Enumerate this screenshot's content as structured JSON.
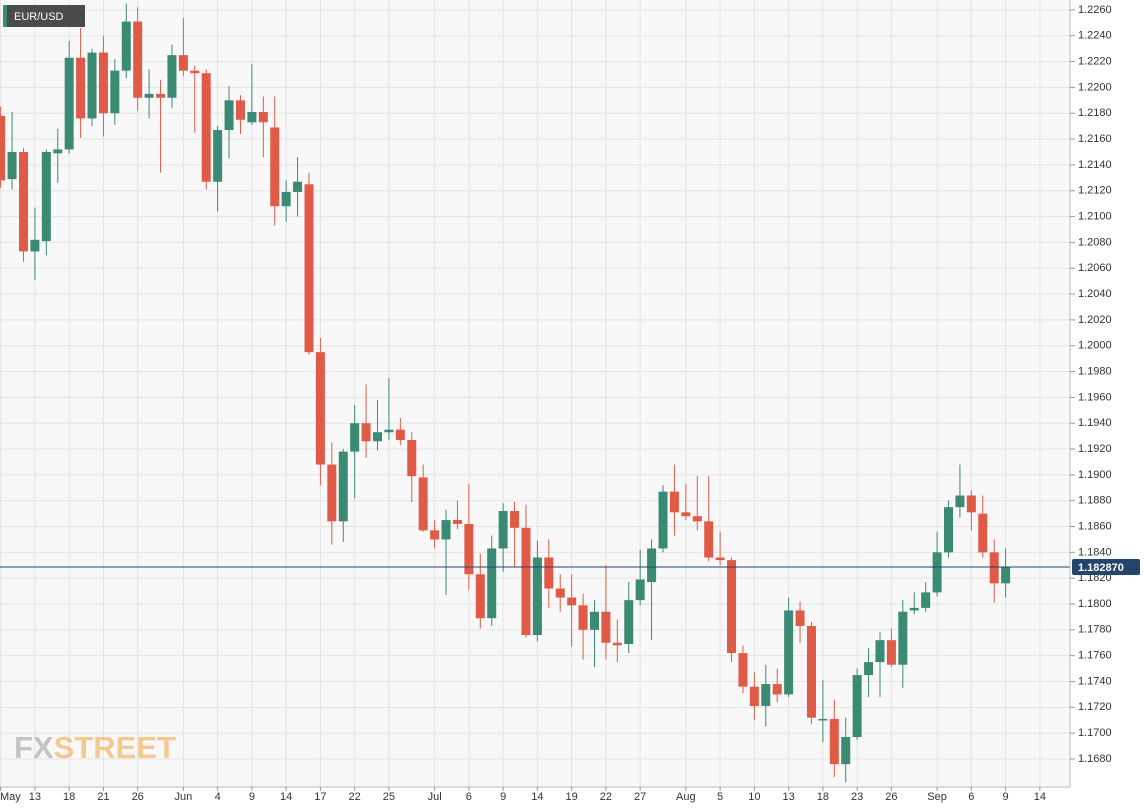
{
  "chart_data": {
    "type": "candlestick",
    "title": "EUR/USD",
    "watermark": [
      "FX",
      "STREET"
    ],
    "categories": [
      "May",
      null,
      null,
      "13",
      null,
      null,
      "18",
      null,
      null,
      "21",
      null,
      null,
      "26",
      null,
      null,
      null,
      "Jun",
      null,
      null,
      "4",
      null,
      null,
      "9",
      null,
      null,
      "14",
      null,
      null,
      "17",
      null,
      null,
      "22",
      null,
      null,
      "25",
      null,
      null,
      null,
      "Jul",
      null,
      null,
      "6",
      null,
      null,
      "9",
      null,
      null,
      "14",
      null,
      null,
      "19",
      null,
      null,
      "22",
      null,
      null,
      "27",
      null,
      null,
      null,
      "Aug",
      null,
      null,
      "5",
      null,
      null,
      "10",
      null,
      null,
      "13",
      null,
      null,
      "18",
      null,
      null,
      "23",
      null,
      null,
      "26",
      null,
      null,
      null,
      "Sep",
      null,
      null,
      "6",
      null,
      null,
      "9",
      null,
      null,
      "14"
    ],
    "open": [
      1.2178,
      1.2129,
      1.215,
      1.2073,
      1.2081,
      1.2149,
      1.2152,
      1.2223,
      1.2176,
      1.2227,
      1.218,
      1.2213,
      1.2251,
      1.2192,
      1.2195,
      1.2192,
      1.2225,
      1.2213,
      1.2211,
      1.2127,
      1.2167,
      1.219,
      1.2173,
      1.2181,
      1.2169,
      1.2108,
      1.2119,
      1.2125,
      1.1995,
      1.1908,
      1.1864,
      1.1918,
      1.194,
      1.1926,
      1.1933,
      1.1935,
      1.1927,
      1.1898,
      1.1857,
      1.185,
      1.1865,
      1.1862,
      1.1823,
      1.1789,
      1.1843,
      1.1872,
      1.1859,
      1.1776,
      1.1836,
      1.1812,
      1.1805,
      1.1799,
      1.178,
      1.1794,
      1.177,
      1.1769,
      1.1803,
      1.1817,
      1.1843,
      1.1887,
      1.1871,
      1.1868,
      1.1864,
      1.1836,
      1.1834,
      1.1762,
      1.1736,
      1.1721,
      1.1738,
      1.173,
      1.1795,
      1.1783,
      1.1711,
      1.1711,
      1.1676,
      1.1697,
      1.1745,
      1.1755,
      1.1772,
      1.1753,
      1.1795,
      1.1797,
      1.1809,
      1.184,
      1.1875,
      1.1884,
      1.187,
      1.184,
      1.1816,
      null,
      null,
      null
    ],
    "high": [
      1.2185,
      1.2181,
      1.2153,
      1.2107,
      1.2152,
      1.2168,
      1.2236,
      1.2246,
      1.223,
      1.224,
      1.2222,
      1.2265,
      1.2262,
      1.2214,
      1.2206,
      1.2233,
      1.2254,
      1.2217,
      1.2214,
      1.217,
      1.2201,
      1.2194,
      1.2218,
      1.2193,
      1.2193,
      1.2128,
      1.2146,
      1.2134,
      1.2006,
      1.1925,
      1.192,
      1.1954,
      1.197,
      1.1958,
      1.1975,
      1.1944,
      1.1933,
      1.1908,
      1.1865,
      1.1873,
      1.188,
      1.1893,
      1.1839,
      1.1853,
      1.1878,
      1.1879,
      1.1877,
      1.1849,
      1.185,
      1.1823,
      1.1823,
      1.1808,
      1.1803,
      1.183,
      1.1788,
      1.1817,
      1.1842,
      1.185,
      1.1892,
      1.1908,
      1.1893,
      1.1899,
      1.1899,
      1.1856,
      1.1836,
      1.1768,
      1.1747,
      1.1753,
      1.175,
      1.1805,
      1.1802,
      1.1786,
      1.1741,
      1.1726,
      1.1712,
      1.175,
      1.1766,
      1.1778,
      1.1781,
      1.1803,
      1.1809,
      1.1817,
      1.1856,
      1.188,
      1.1908,
      1.1888,
      1.1884,
      1.185,
      1.1843,
      null,
      null,
      null
    ],
    "low": [
      1.2122,
      1.2121,
      1.2065,
      1.2051,
      1.207,
      1.2126,
      1.2149,
      1.2161,
      1.217,
      1.2162,
      1.2171,
      1.2207,
      1.2182,
      1.2176,
      1.2134,
      1.2184,
      1.2209,
      1.2165,
      1.2121,
      1.2104,
      1.2145,
      1.2164,
      1.2171,
      1.2146,
      1.2093,
      1.2096,
      1.21,
      1.1993,
      1.1892,
      1.1846,
      1.1848,
      1.1882,
      1.1913,
      1.1919,
      1.1927,
      1.1923,
      1.1879,
      1.1856,
      1.1843,
      1.1807,
      1.1858,
      1.1811,
      1.1781,
      1.1783,
      1.1825,
      1.1829,
      1.1774,
      1.1771,
      1.1797,
      1.1794,
      1.1767,
      1.1757,
      1.1751,
      1.1757,
      1.1755,
      1.1762,
      1.1799,
      1.1772,
      1.184,
      1.1853,
      1.1865,
      1.1857,
      1.1833,
      1.183,
      1.1755,
      1.1731,
      1.171,
      1.1705,
      1.1724,
      1.1728,
      1.177,
      1.1707,
      1.1693,
      1.1666,
      1.1662,
      1.1695,
      1.1728,
      1.1728,
      1.1751,
      1.1735,
      1.1792,
      1.1794,
      1.1806,
      1.1836,
      1.1867,
      1.1857,
      1.1836,
      1.1801,
      1.1805,
      null,
      null,
      null
    ],
    "close": [
      1.2128,
      1.215,
      1.2073,
      1.2082,
      1.215,
      1.2152,
      1.2223,
      1.2176,
      1.2227,
      1.218,
      1.2213,
      1.2251,
      1.2192,
      1.2195,
      1.2192,
      1.2225,
      1.2213,
      1.2211,
      1.2127,
      1.2167,
      1.219,
      1.2175,
      1.2181,
      1.2173,
      1.2108,
      1.2119,
      1.2127,
      1.1995,
      1.1908,
      1.1864,
      1.1918,
      1.194,
      1.1926,
      1.1933,
      1.1935,
      1.1927,
      1.1899,
      1.1857,
      1.185,
      1.1865,
      1.1862,
      1.1823,
      1.1789,
      1.1843,
      1.1872,
      1.1859,
      1.1776,
      1.1836,
      1.1812,
      1.1805,
      1.1799,
      1.178,
      1.1794,
      1.177,
      1.1768,
      1.1803,
      1.1819,
      1.1843,
      1.1887,
      1.1871,
      1.1868,
      1.1864,
      1.1836,
      1.1834,
      1.1762,
      1.1736,
      1.1721,
      1.1738,
      1.173,
      1.1795,
      1.1783,
      1.1712,
      1.1711,
      1.1676,
      1.1697,
      1.1745,
      1.1755,
      1.1772,
      1.1753,
      1.1794,
      1.1797,
      1.1809,
      1.184,
      1.1875,
      1.1884,
      1.1871,
      1.184,
      1.1816,
      1.1829,
      null,
      null,
      null
    ],
    "up_color": "#3a8a74",
    "down_color": "#df5b48",
    "last_price": {
      "value": 1.18287,
      "label": "1.182870"
    },
    "last_price_color": "#23456b",
    "ylim": [
      1.16583,
      1.22677
    ],
    "yticks": [
      {
        "value": 1.168,
        "label": "1.1680"
      },
      {
        "value": 1.17,
        "label": "1.1700"
      },
      {
        "value": 1.172,
        "label": "1.1720"
      },
      {
        "value": 1.174,
        "label": "1.1740"
      },
      {
        "value": 1.176,
        "label": "1.1760"
      },
      {
        "value": 1.178,
        "label": "1.1780"
      },
      {
        "value": 1.18,
        "label": "1.1800"
      },
      {
        "value": 1.182,
        "label": "1.1820"
      },
      {
        "value": 1.184,
        "label": "1.1840"
      },
      {
        "value": 1.186,
        "label": "1.1860"
      },
      {
        "value": 1.188,
        "label": "1.1880"
      },
      {
        "value": 1.19,
        "label": "1.1900"
      },
      {
        "value": 1.192,
        "label": "1.1920"
      },
      {
        "value": 1.194,
        "label": "1.1940"
      },
      {
        "value": 1.196,
        "label": "1.1960"
      },
      {
        "value": 1.198,
        "label": "1.1980"
      },
      {
        "value": 1.2,
        "label": "1.2000"
      },
      {
        "value": 1.202,
        "label": "1.2020"
      },
      {
        "value": 1.204,
        "label": "1.2040"
      },
      {
        "value": 1.206,
        "label": "1.2060"
      },
      {
        "value": 1.208,
        "label": "1.2080"
      },
      {
        "value": 1.21,
        "label": "1.2100"
      },
      {
        "value": 1.212,
        "label": "1.2120"
      },
      {
        "value": 1.214,
        "label": "1.2140"
      },
      {
        "value": 1.216,
        "label": "1.2160"
      },
      {
        "value": 1.218,
        "label": "1.2180"
      },
      {
        "value": 1.22,
        "label": "1.2200"
      },
      {
        "value": 1.222,
        "label": "1.2220"
      },
      {
        "value": 1.224,
        "label": "1.2240"
      },
      {
        "value": 1.226,
        "label": "1.2260"
      }
    ],
    "grid": true
  }
}
